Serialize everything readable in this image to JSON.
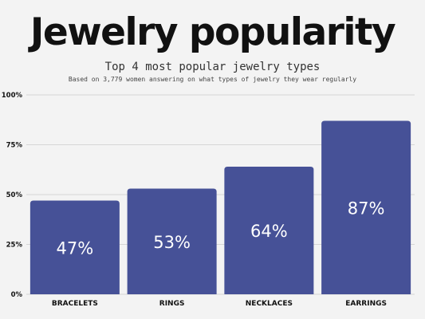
{
  "header": {
    "title": "Jewelry popularity",
    "subtitle": "Top 4 most popular jewelry types",
    "note": "Based on 3,779 women answering on what types of jewelry they wear regularly"
  },
  "chart_data": {
    "type": "bar",
    "categories": [
      "BRACELETS",
      "RINGS",
      "NECKLACES",
      "EARRINGS"
    ],
    "values": [
      47,
      53,
      64,
      87
    ],
    "value_labels": [
      "47%",
      "53%",
      "64%",
      "87%"
    ],
    "title": "Jewelry popularity",
    "subtitle": "Top 4 most popular jewelry types",
    "xlabel": "",
    "ylabel": "",
    "ylim": [
      0,
      100
    ],
    "yticks": [
      0,
      25,
      50,
      75,
      100
    ],
    "ytick_labels": [
      "0%",
      "25%",
      "50%",
      "75%",
      "100%"
    ],
    "grid": true,
    "legend": "none",
    "colors": {
      "bar": "#465197",
      "bar_label": "#ffffff",
      "grid": "#d6d6d6",
      "axis_text": "#111111",
      "background": "#f3f3f3"
    }
  }
}
